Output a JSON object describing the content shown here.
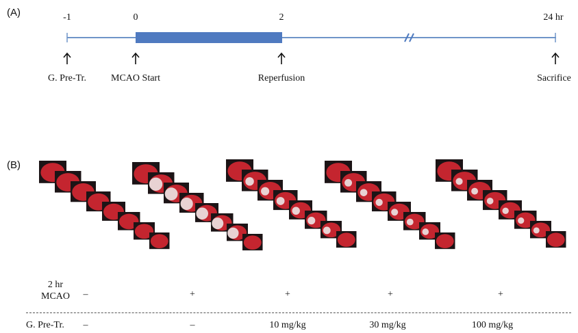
{
  "panel_a": {
    "label": "(A)",
    "ticks": [
      "-1",
      "0",
      "2",
      "24 hr"
    ],
    "events": [
      "G. Pre-Tr.",
      "MCAO Start",
      "Reperfusion",
      "Sacrifice"
    ],
    "axis_break": "//",
    "colors": {
      "line": "#6f94c8",
      "bar": "#4f7ac0"
    }
  },
  "panel_b": {
    "label": "(B)",
    "groups": [
      {
        "mcao": "–",
        "pretr": "–"
      },
      {
        "mcao": "+",
        "pretr": "–"
      },
      {
        "mcao": "+",
        "pretr": "10 mg/kg"
      },
      {
        "mcao": "+",
        "pretr": "30 mg/kg"
      },
      {
        "mcao": "+",
        "pretr": "100 mg/kg"
      }
    ],
    "row_mcao_label": [
      "2 hr",
      "MCAO"
    ],
    "row_pretr_label": "G. Pre-Tr.",
    "colors": {
      "tissue": "#c4252f",
      "infarct": "#ece6e6",
      "background": "#1c1416"
    }
  }
}
